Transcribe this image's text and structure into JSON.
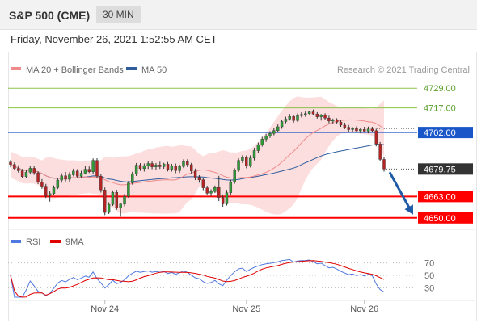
{
  "header": {
    "symbol": "S&P 500 (CME)",
    "timeframe": "30 MIN",
    "datetime": "Friday, November 26, 2021 1:52:55 AM CET"
  },
  "chart_data": [
    {
      "type": "candlestick",
      "legend": [
        {
          "name": "MA 20 + Bollinger Bands",
          "color": "#f08a8a"
        },
        {
          "name": "MA 50",
          "color": "#2f5d9e"
        }
      ],
      "copyright": "Research © 2021 Trading Central",
      "ylim": [
        4644,
        4736
      ],
      "levels": [
        {
          "label": "4729.00",
          "value": 4729.0,
          "kind": "target",
          "color": "#8bc34a"
        },
        {
          "label": "4717.00",
          "value": 4717.0,
          "kind": "target",
          "color": "#8bc34a"
        },
        {
          "label": "4702.00",
          "value": 4702.0,
          "kind": "pivot",
          "color": "#1a56c8"
        },
        {
          "label": "4679.75",
          "value": 4679.75,
          "kind": "last",
          "color": "#333333"
        },
        {
          "label": "4663.00",
          "value": 4663.0,
          "kind": "support",
          "color": "#ff0000"
        },
        {
          "label": "4650.00",
          "value": 4650.0,
          "kind": "support",
          "color": "#ff0000"
        }
      ],
      "x_ticks": [
        "Nov 24",
        "Nov 25",
        "Nov 26"
      ],
      "candles": [
        [
          4684.0,
          4685.2,
          4680.8,
          4682.5
        ],
        [
          4682.5,
          4683.8,
          4678.9,
          4680.1
        ],
        [
          4680.1,
          4682.0,
          4677.6,
          4678.7
        ],
        [
          4678.7,
          4679.8,
          4674.2,
          4675.1
        ],
        [
          4675.1,
          4679.2,
          4674.1,
          4677.8
        ],
        [
          4677.8,
          4681.4,
          4676.4,
          4680.2
        ],
        [
          4680.2,
          4681.5,
          4676.2,
          4677.4
        ],
        [
          4677.4,
          4678.4,
          4670.6,
          4671.9
        ],
        [
          4671.9,
          4673.6,
          4667.7,
          4669.3
        ],
        [
          4669.3,
          4670.7,
          4662.1,
          4663.5
        ],
        [
          4663.5,
          4666.3,
          4659.9,
          4664.8
        ],
        [
          4664.8,
          4669.7,
          4663.7,
          4668.4
        ],
        [
          4668.4,
          4674.3,
          4667.5,
          4673.0
        ],
        [
          4673.0,
          4677.2,
          4671.4,
          4675.6
        ],
        [
          4675.6,
          4678.0,
          4672.2,
          4673.5
        ],
        [
          4673.5,
          4677.8,
          4672.1,
          4676.2
        ],
        [
          4676.2,
          4680.0,
          4675.3,
          4678.5
        ],
        [
          4678.5,
          4679.7,
          4674.2,
          4675.3
        ],
        [
          4675.3,
          4678.7,
          4674.3,
          4677.2
        ],
        [
          4677.2,
          4681.4,
          4676.4,
          4679.6
        ],
        [
          4679.6,
          4681.3,
          4677.3,
          4678.1
        ],
        [
          4678.1,
          4686.2,
          4676.9,
          4685.0
        ],
        [
          4685.0,
          4686.3,
          4674.0,
          4675.4
        ],
        [
          4675.4,
          4676.7,
          4665.4,
          4667.0
        ],
        [
          4667.0,
          4668.5,
          4651.7,
          4653.3
        ],
        [
          4653.3,
          4659.5,
          4652.4,
          4658.2
        ],
        [
          4658.2,
          4666.7,
          4657.3,
          4665.5
        ],
        [
          4665.5,
          4667.1,
          4654.9,
          4656.2
        ],
        [
          4656.2,
          4658.7,
          4650.7,
          4658.4
        ],
        [
          4658.4,
          4664.6,
          4657.0,
          4663.1
        ],
        [
          4663.1,
          4672.5,
          4662.2,
          4671.3
        ],
        [
          4671.3,
          4678.1,
          4670.2,
          4676.9
        ],
        [
          4676.9,
          4683.4,
          4675.5,
          4682.1
        ],
        [
          4682.1,
          4683.3,
          4678.6,
          4680.0
        ],
        [
          4680.0,
          4683.1,
          4678.2,
          4681.8
        ],
        [
          4681.8,
          4684.4,
          4679.8,
          4683.1
        ],
        [
          4683.1,
          4684.3,
          4679.6,
          4681.0
        ],
        [
          4681.0,
          4683.4,
          4679.4,
          4682.2
        ],
        [
          4682.2,
          4684.2,
          4679.8,
          4681.2
        ],
        [
          4681.2,
          4683.5,
          4679.9,
          4682.7
        ],
        [
          4682.7,
          4684.0,
          4678.3,
          4679.6
        ],
        [
          4679.6,
          4682.9,
          4678.2,
          4681.5
        ],
        [
          4681.5,
          4683.1,
          4677.2,
          4678.8
        ],
        [
          4678.8,
          4682.4,
          4677.4,
          4681.3
        ],
        [
          4681.3,
          4685.7,
          4680.3,
          4684.2
        ],
        [
          4684.2,
          4685.7,
          4680.9,
          4682.4
        ],
        [
          4682.4,
          4683.5,
          4676.8,
          4678.5
        ],
        [
          4678.5,
          4680.0,
          4673.0,
          4674.7
        ],
        [
          4674.7,
          4676.0,
          4671.4,
          4673.2
        ],
        [
          4673.2,
          4674.5,
          4666.8,
          4668.3
        ],
        [
          4668.3,
          4669.6,
          4663.8,
          4665.0
        ],
        [
          4665.0,
          4667.4,
          4663.3,
          4666.0
        ],
        [
          4666.0,
          4669.7,
          4665.1,
          4668.5
        ],
        [
          4668.5,
          4675.6,
          4660.2,
          4662.4
        ],
        [
          4662.4,
          4663.7,
          4656.8,
          4658.5
        ],
        [
          4658.5,
          4667.0,
          4657.5,
          4665.3
        ],
        [
          4665.3,
          4673.3,
          4664.1,
          4672.0
        ],
        [
          4672.0,
          4680.2,
          4670.8,
          4678.9
        ],
        [
          4678.9,
          4686.3,
          4677.9,
          4685.0
        ],
        [
          4685.0,
          4688.2,
          4683.3,
          4686.7
        ],
        [
          4686.7,
          4688.0,
          4680.2,
          4681.7
        ],
        [
          4681.7,
          4688.1,
          4680.7,
          4686.4
        ],
        [
          4686.4,
          4692.6,
          4685.0,
          4691.0
        ],
        [
          4691.0,
          4695.9,
          4689.4,
          4694.6
        ],
        [
          4694.6,
          4699.4,
          4693.4,
          4698.0
        ],
        [
          4698.0,
          4701.2,
          4696.3,
          4699.8
        ],
        [
          4699.8,
          4702.7,
          4698.7,
          4701.4
        ],
        [
          4701.4,
          4704.6,
          4700.3,
          4703.2
        ],
        [
          4703.2,
          4706.9,
          4702.0,
          4705.5
        ],
        [
          4705.5,
          4709.9,
          4704.3,
          4708.7
        ],
        [
          4708.7,
          4711.6,
          4707.6,
          4710.2
        ],
        [
          4710.2,
          4713.3,
          4709.3,
          4711.8
        ],
        [
          4711.8,
          4712.8,
          4708.0,
          4709.3
        ],
        [
          4709.3,
          4713.6,
          4708.4,
          4712.3
        ],
        [
          4712.3,
          4714.4,
          4711.2,
          4713.0
        ],
        [
          4713.0,
          4714.8,
          4711.6,
          4713.5
        ],
        [
          4713.5,
          4715.0,
          4713.0,
          4714.6
        ],
        [
          4714.6,
          4716.0,
          4712.5,
          4713.3
        ],
        [
          4713.3,
          4714.4,
          4710.5,
          4711.6
        ],
        [
          4711.6,
          4713.3,
          4709.3,
          4712.6
        ],
        [
          4712.6,
          4713.7,
          4709.6,
          4710.8
        ],
        [
          4710.8,
          4712.2,
          4707.6,
          4709.0
        ],
        [
          4709.0,
          4710.5,
          4707.2,
          4709.8
        ],
        [
          4709.8,
          4710.7,
          4707.4,
          4708.4
        ],
        [
          4708.4,
          4709.5,
          4705.5,
          4706.5
        ],
        [
          4706.5,
          4708.0,
          4704.1,
          4705.2
        ],
        [
          4705.2,
          4706.6,
          4702.5,
          4703.8
        ],
        [
          4703.8,
          4705.3,
          4701.8,
          4704.4
        ],
        [
          4704.4,
          4705.8,
          4702.6,
          4703.0
        ],
        [
          4703.0,
          4704.6,
          4701.5,
          4703.9
        ],
        [
          4703.9,
          4705.5,
          4702.1,
          4702.8
        ],
        [
          4702.8,
          4705.6,
          4701.5,
          4704.2
        ],
        [
          4704.2,
          4705.5,
          4702.5,
          4703.1
        ],
        [
          4703.1,
          4704.3,
          4693.6,
          4695.0
        ],
        [
          4695.0,
          4696.2,
          4684.4,
          4685.6
        ],
        [
          4685.6,
          4686.8,
          4678.2,
          4679.75
        ]
      ]
    },
    {
      "type": "line",
      "legend": [
        {
          "name": "RSI",
          "color": "#4f78e0"
        },
        {
          "name": "9MA",
          "color": "#e00000"
        }
      ],
      "ylim": [
        15,
        85
      ],
      "y_ticks": [
        "70",
        "50",
        "30"
      ]
    }
  ]
}
